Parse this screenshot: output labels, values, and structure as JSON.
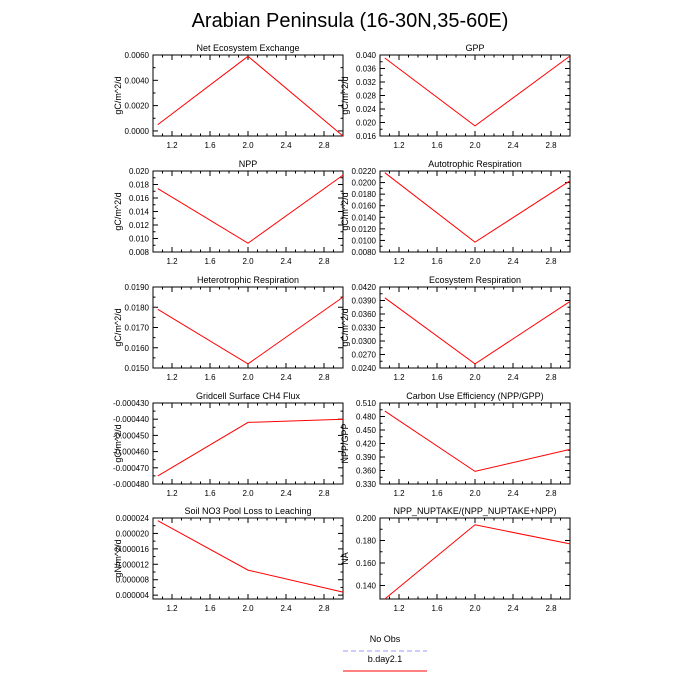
{
  "figure": {
    "title": "Arabian Peninsula (16-30N,35-60E)"
  },
  "legend": {
    "items": [
      {
        "label": "No Obs",
        "color": "#9999ff",
        "dashed": true
      },
      {
        "label": "b.day2.1",
        "color": "#ff0000",
        "dashed": false
      }
    ]
  },
  "chart_data": [
    {
      "type": "line",
      "title": "Net Ecosystem Exchange",
      "ylabel": "gC/m^2/d",
      "xlim": [
        1.0,
        3.0
      ],
      "ylim": [
        -0.0004,
        0.006
      ],
      "xticks": [
        "1.2",
        "1.6",
        "2.0",
        "2.4",
        "2.8"
      ],
      "yticks": [
        "0.0000",
        "0.0020",
        "0.0040",
        "0.0060"
      ],
      "series": [
        {
          "x": [
            1.05,
            2.0,
            3.0
          ],
          "y": [
            0.0005,
            0.0059,
            -0.0004
          ],
          "color": "#ff0000"
        }
      ]
    },
    {
      "type": "line",
      "title": "GPP",
      "ylabel": "gC/m^2/d",
      "xlim": [
        1.0,
        3.0
      ],
      "ylim": [
        0.016,
        0.04
      ],
      "xticks": [
        "1.2",
        "1.6",
        "2.0",
        "2.4",
        "2.8"
      ],
      "yticks": [
        "0.016",
        "0.020",
        "0.024",
        "0.028",
        "0.032",
        "0.036",
        "0.040"
      ],
      "series": [
        {
          "x": [
            1.05,
            2.0,
            3.0
          ],
          "y": [
            0.0391,
            0.019,
            0.0397
          ],
          "color": "#ff0000"
        }
      ]
    },
    {
      "type": "line",
      "title": "NPP",
      "ylabel": "gC/m^2/d",
      "xlim": [
        1.0,
        3.0
      ],
      "ylim": [
        0.008,
        0.02
      ],
      "xticks": [
        "1.2",
        "1.6",
        "2.0",
        "2.4",
        "2.8"
      ],
      "yticks": [
        "0.008",
        "0.010",
        "0.012",
        "0.014",
        "0.016",
        "0.018",
        "0.020"
      ],
      "series": [
        {
          "x": [
            1.05,
            2.0,
            3.0
          ],
          "y": [
            0.0174,
            0.0093,
            0.0194
          ],
          "color": "#ff0000"
        }
      ]
    },
    {
      "type": "line",
      "title": "Autotrophic Respiration",
      "ylabel": "gC/m^2/d",
      "xlim": [
        1.0,
        3.0
      ],
      "ylim": [
        0.008,
        0.022
      ],
      "xticks": [
        "1.2",
        "1.6",
        "2.0",
        "2.4",
        "2.8"
      ],
      "yticks": [
        "0.0080",
        "0.0100",
        "0.0120",
        "0.0140",
        "0.0160",
        "0.0180",
        "0.0200",
        "0.0220"
      ],
      "series": [
        {
          "x": [
            1.05,
            2.0,
            3.0
          ],
          "y": [
            0.0217,
            0.0097,
            0.0203
          ],
          "color": "#ff0000"
        }
      ]
    },
    {
      "type": "line",
      "title": "Heterotrophic Respiration",
      "ylabel": "gC/m^2/d",
      "xlim": [
        1.0,
        3.0
      ],
      "ylim": [
        0.015,
        0.019
      ],
      "xticks": [
        "1.2",
        "1.6",
        "2.0",
        "2.4",
        "2.8"
      ],
      "yticks": [
        "0.0150",
        "0.0160",
        "0.0170",
        "0.0180",
        "0.0190"
      ],
      "series": [
        {
          "x": [
            1.05,
            2.0,
            3.0
          ],
          "y": [
            0.0179,
            0.0152,
            0.0185
          ],
          "color": "#ff0000"
        }
      ]
    },
    {
      "type": "line",
      "title": "Ecosystem Respiration",
      "ylabel": "gC/m^2/d",
      "xlim": [
        1.0,
        3.0
      ],
      "ylim": [
        0.024,
        0.042
      ],
      "xticks": [
        "1.2",
        "1.6",
        "2.0",
        "2.4",
        "2.8"
      ],
      "yticks": [
        "0.0240",
        "0.0270",
        "0.0300",
        "0.0330",
        "0.0360",
        "0.0390",
        "0.0420"
      ],
      "series": [
        {
          "x": [
            1.05,
            2.0,
            3.0
          ],
          "y": [
            0.0396,
            0.0249,
            0.0388
          ],
          "color": "#ff0000"
        }
      ]
    },
    {
      "type": "line",
      "title": "Gridcell Surface CH4 Flux",
      "ylabel": "gC/m^2/d",
      "xlim": [
        1.0,
        3.0
      ],
      "ylim": [
        -0.00048,
        -0.00043
      ],
      "xticks": [
        "1.2",
        "1.6",
        "2.0",
        "2.4",
        "2.8"
      ],
      "yticks": [
        "-0.000480",
        "-0.000470",
        "-0.000460",
        "-0.000450",
        "-0.000440",
        "-0.000430"
      ],
      "series": [
        {
          "x": [
            1.05,
            2.0,
            3.0
          ],
          "y": [
            -0.000475,
            -0.000442,
            -0.00044
          ],
          "color": "#ff0000"
        }
      ]
    },
    {
      "type": "line",
      "title": "Carbon Use Efficiency (NPP/GPP)",
      "ylabel": "NPP/GPP",
      "xlim": [
        1.0,
        3.0
      ],
      "ylim": [
        0.33,
        0.51
      ],
      "xticks": [
        "1.2",
        "1.6",
        "2.0",
        "2.4",
        "2.8"
      ],
      "yticks": [
        "0.330",
        "0.360",
        "0.390",
        "0.420",
        "0.450",
        "0.480",
        "0.510"
      ],
      "series": [
        {
          "x": [
            1.05,
            2.0,
            3.0
          ],
          "y": [
            0.492,
            0.358,
            0.407
          ],
          "color": "#ff0000"
        }
      ]
    },
    {
      "type": "line",
      "title": "Soil NO3 Pool Loss to Leaching",
      "ylabel": "gN/m^2/d",
      "xlim": [
        1.0,
        3.0
      ],
      "ylim": [
        3e-06,
        2.4e-05
      ],
      "xticks": [
        "1.2",
        "1.6",
        "2.0",
        "2.4",
        "2.8"
      ],
      "yticks": [
        "0.000004",
        "0.000008",
        "0.000012",
        "0.000016",
        "0.000020",
        "0.000024"
      ],
      "series": [
        {
          "x": [
            1.05,
            2.0,
            3.0
          ],
          "y": [
            2.33e-05,
            1.05e-05,
            4.8e-06
          ],
          "color": "#ff0000"
        }
      ]
    },
    {
      "type": "line",
      "title": "NPP_NUPTAKE/(NPP_NUPTAKE+NPP)",
      "ylabel": "NA",
      "xlim": [
        1.0,
        3.0
      ],
      "ylim": [
        0.128,
        0.2
      ],
      "xticks": [
        "1.2",
        "1.6",
        "2.0",
        "2.4",
        "2.8"
      ],
      "yticks": [
        "0.140",
        "0.160",
        "0.180",
        "0.200"
      ],
      "series": [
        {
          "x": [
            1.05,
            2.0,
            3.0
          ],
          "y": [
            0.128,
            0.194,
            0.177
          ],
          "color": "#ff0000"
        }
      ]
    }
  ]
}
